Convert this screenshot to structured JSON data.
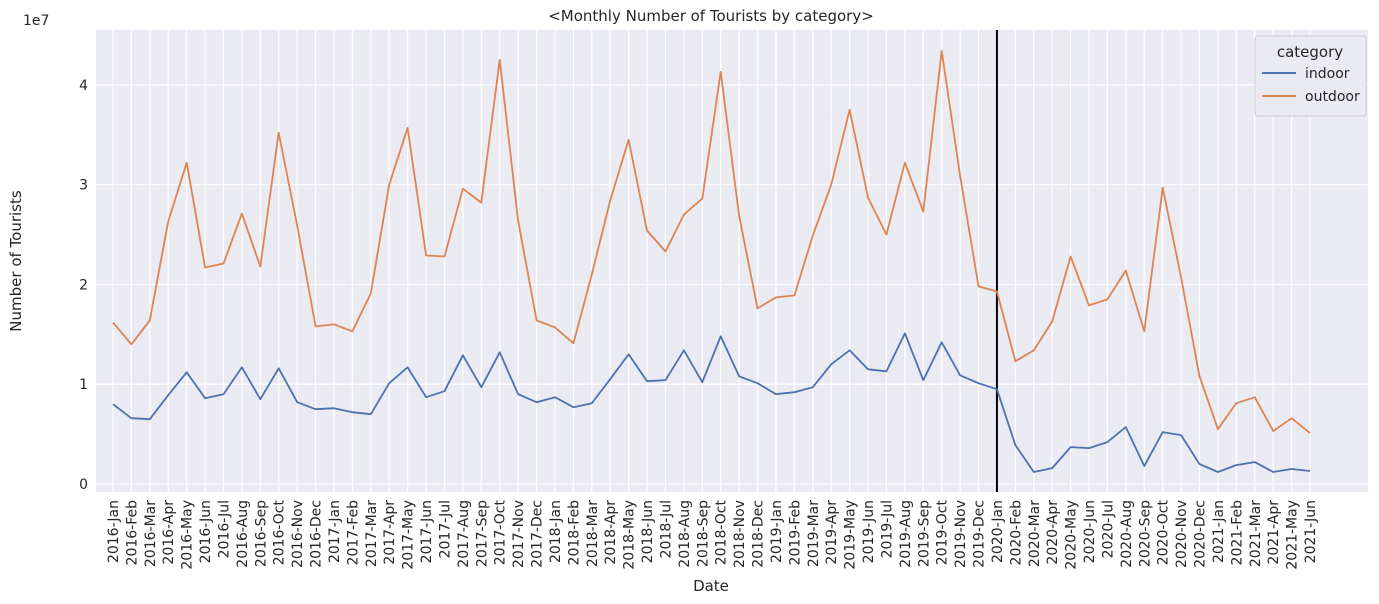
{
  "chart_data": {
    "type": "line",
    "title": "<Monthly Number of Tourists by category>",
    "xlabel": "Date",
    "ylabel": "Number of Tourists",
    "y_offset_label": "1e7",
    "y_ticks": [
      0,
      10000000,
      20000000,
      30000000,
      40000000
    ],
    "y_tick_labels": [
      "0",
      "1",
      "2",
      "3",
      "4"
    ],
    "ylim": [
      -800000,
      45500000
    ],
    "grid": true,
    "legend_title": "category",
    "legend_position": "top-right",
    "vline_at": "2020-Jan",
    "categories": [
      "2016-Jan",
      "2016-Feb",
      "2016-Mar",
      "2016-Apr",
      "2016-May",
      "2016-Jun",
      "2016-Jul",
      "2016-Aug",
      "2016-Sep",
      "2016-Oct",
      "2016-Nov",
      "2016-Dec",
      "2017-Jan",
      "2017-Feb",
      "2017-Mar",
      "2017-Apr",
      "2017-May",
      "2017-Jun",
      "2017-Jul",
      "2017-Aug",
      "2017-Sep",
      "2017-Oct",
      "2017-Nov",
      "2017-Dec",
      "2018-Jan",
      "2018-Feb",
      "2018-Mar",
      "2018-Apr",
      "2018-May",
      "2018-Jun",
      "2018-Jul",
      "2018-Aug",
      "2018-Sep",
      "2018-Oct",
      "2018-Nov",
      "2018-Dec",
      "2019-Jan",
      "2019-Feb",
      "2019-Mar",
      "2019-Apr",
      "2019-May",
      "2019-Jun",
      "2019-Jul",
      "2019-Aug",
      "2019-Sep",
      "2019-Oct",
      "2019-Nov",
      "2019-Dec",
      "2020-Jan",
      "2020-Feb",
      "2020-Mar",
      "2020-Apr",
      "2020-May",
      "2020-Jun",
      "2020-Jul",
      "2020-Aug",
      "2020-Sep",
      "2020-Oct",
      "2020-Nov",
      "2020-Dec",
      "2021-Jan",
      "2021-Feb",
      "2021-Mar",
      "2021-Apr",
      "2021-May",
      "2021-Jun"
    ],
    "series": [
      {
        "name": "indoor",
        "color": "#4c72b0",
        "values": [
          8000000,
          6600000,
          6500000,
          8900000,
          11200000,
          8600000,
          9000000,
          11700000,
          8500000,
          11600000,
          8200000,
          7500000,
          7600000,
          7200000,
          7000000,
          10100000,
          11700000,
          8700000,
          9300000,
          12900000,
          9700000,
          13200000,
          9000000,
          8200000,
          8700000,
          7700000,
          8100000,
          10500000,
          13000000,
          10300000,
          10400000,
          13400000,
          10200000,
          14800000,
          10800000,
          10100000,
          9000000,
          9200000,
          9700000,
          12000000,
          13400000,
          11500000,
          11300000,
          15100000,
          10400000,
          14200000,
          10900000,
          10100000,
          9500000,
          3900000,
          1200000,
          1600000,
          3700000,
          3600000,
          4200000,
          5700000,
          1800000,
          5200000,
          4900000,
          2000000,
          1200000,
          1900000,
          2200000,
          1200000,
          1500000,
          1300000
        ]
      },
      {
        "name": "outdoor",
        "color": "#dd8452",
        "values": [
          16200000,
          14000000,
          16400000,
          26300000,
          32200000,
          21700000,
          22100000,
          27100000,
          21800000,
          35200000,
          25900000,
          15800000,
          16000000,
          15300000,
          19100000,
          30000000,
          35700000,
          22900000,
          22800000,
          29600000,
          28200000,
          42500000,
          26400000,
          16400000,
          15700000,
          14100000,
          21000000,
          28400000,
          34500000,
          25400000,
          23300000,
          27000000,
          28600000,
          41300000,
          26900000,
          17600000,
          18700000,
          18900000,
          24900000,
          30000000,
          37500000,
          28700000,
          25000000,
          32200000,
          27300000,
          43400000,
          30900000,
          19800000,
          19300000,
          12300000,
          13400000,
          16300000,
          22800000,
          17900000,
          18500000,
          21400000,
          15300000,
          29700000,
          20700000,
          10800000,
          5500000,
          8100000,
          8700000,
          5300000,
          6600000,
          5100000
        ]
      }
    ]
  }
}
